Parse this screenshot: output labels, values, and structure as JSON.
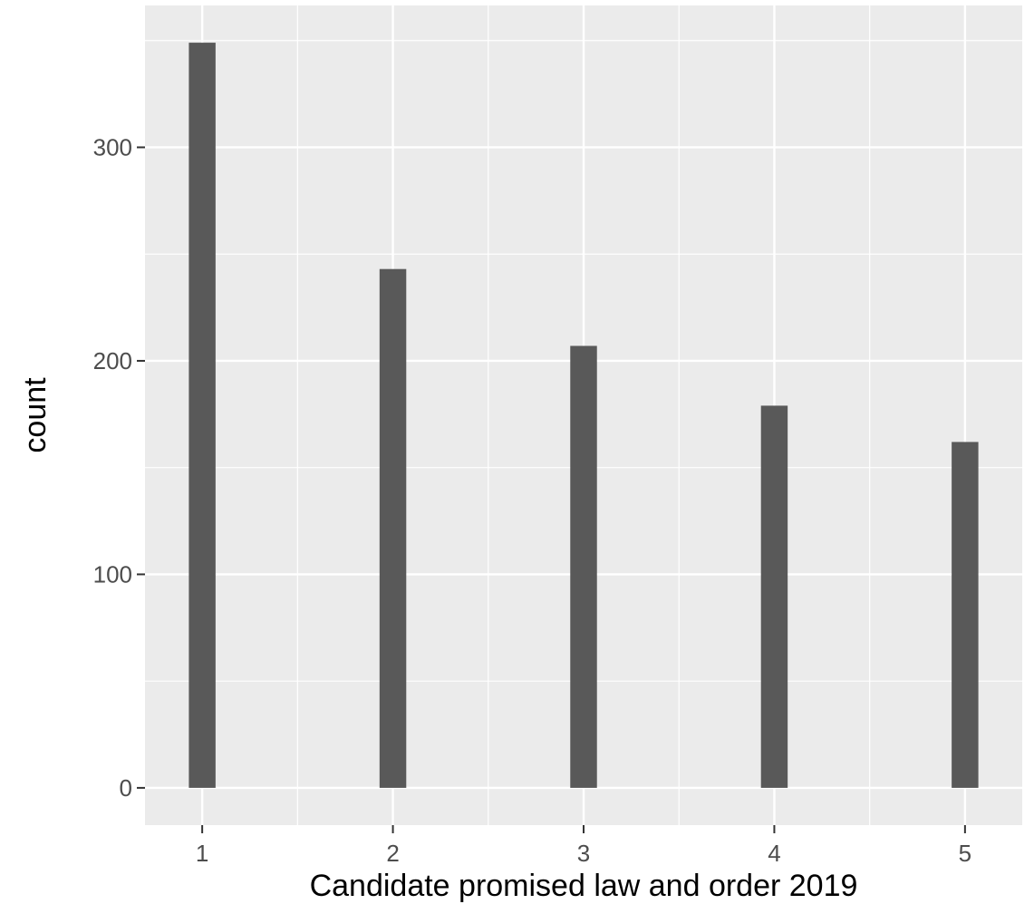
{
  "chart_data": {
    "type": "bar",
    "title": "",
    "xlabel": "Candidate promised law and order 2019",
    "ylabel": "count",
    "categories": [
      "1",
      "2",
      "3",
      "4",
      "5"
    ],
    "x": [
      1,
      2,
      3,
      4,
      5
    ],
    "values": [
      349,
      243,
      207,
      179,
      162
    ],
    "xlim": [
      0.7,
      5.3
    ],
    "ylim": [
      -17.45,
      366.45
    ],
    "x_ticks": [
      1,
      2,
      3,
      4,
      5
    ],
    "y_ticks": [
      0,
      100,
      200,
      300
    ],
    "y_tick_labels": [
      "0",
      "100",
      "200",
      "300"
    ],
    "grid": true,
    "colors": {
      "panel_background": "#ebebeb",
      "grid": "#ffffff",
      "bar_fill": "#595959",
      "tick_text": "#4d4d4d",
      "axis_title_text": "#000000"
    }
  }
}
